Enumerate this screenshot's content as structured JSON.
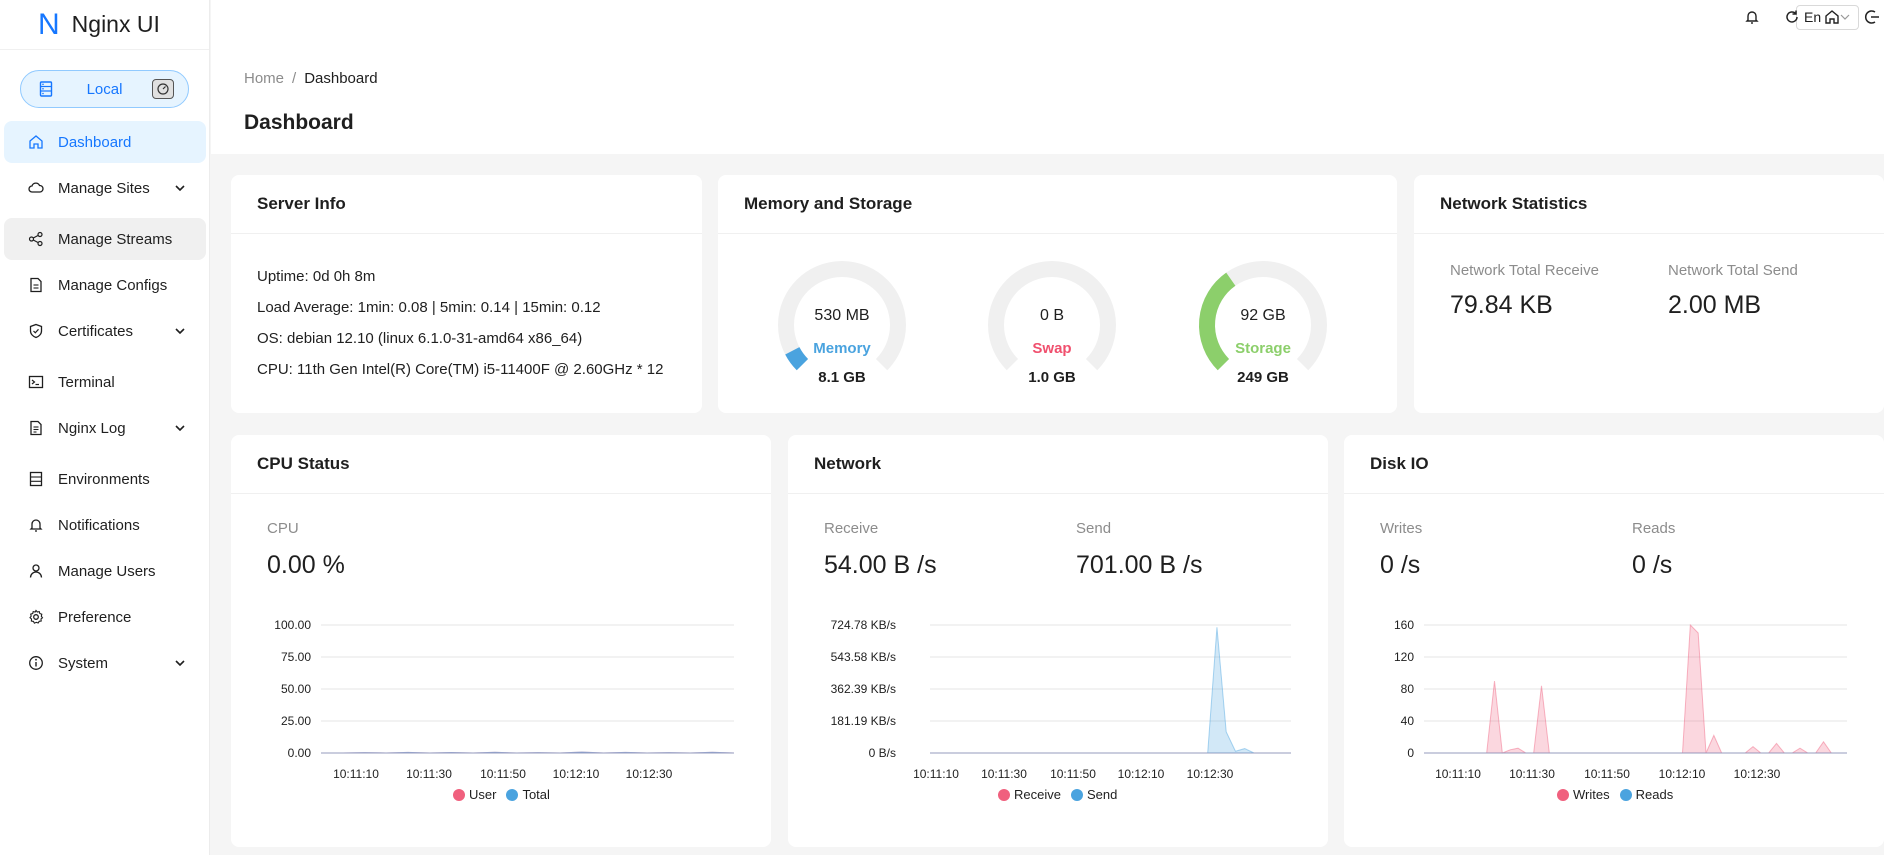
{
  "app": {
    "logo_mark": "N",
    "title": "Nginx UI"
  },
  "environment": {
    "label": "Local"
  },
  "sidebar": {
    "items": [
      {
        "label": "Dashboard",
        "icon": "home-icon",
        "active": true
      },
      {
        "label": "Manage Sites",
        "icon": "cloud-icon",
        "expandable": true
      },
      {
        "label": "Manage Streams",
        "icon": "share-icon"
      },
      {
        "label": "Manage Configs",
        "icon": "file-icon"
      },
      {
        "label": "Certificates",
        "icon": "shield-icon",
        "expandable": true
      },
      {
        "label": "Terminal",
        "icon": "terminal-icon"
      },
      {
        "label": "Nginx Log",
        "icon": "log-file-icon",
        "expandable": true
      },
      {
        "label": "Environments",
        "icon": "database-icon"
      },
      {
        "label": "Notifications",
        "icon": "bell-icon"
      },
      {
        "label": "Manage Users",
        "icon": "user-icon"
      },
      {
        "label": "Preference",
        "icon": "gear-icon"
      },
      {
        "label": "System",
        "icon": "info-icon",
        "expandable": true
      }
    ]
  },
  "header": {
    "language": "En"
  },
  "breadcrumb": {
    "home": "Home",
    "sep": "/",
    "current": "Dashboard"
  },
  "page": {
    "title": "Dashboard"
  },
  "server_info": {
    "title": "Server Info",
    "uptime": "Uptime: 0d 0h 8m",
    "load": "Load Average: 1min: 0.08 | 5min: 0.14 | 15min: 0.12",
    "os": "OS: debian 12.10 (linux 6.1.0-31-amd64 x86_64)",
    "cpu": "CPU: 11th Gen Intel(R) Core(TM) i5-11400F @ 2.60GHz * 12"
  },
  "memory_storage": {
    "title": "Memory and Storage",
    "gauges": [
      {
        "value": "530 MB",
        "name": "Memory",
        "total": "8.1 GB",
        "fraction": 0.065,
        "color": "#4aa3df"
      },
      {
        "value": "0 B",
        "name": "Swap",
        "total": "1.0 GB",
        "fraction": 0.0,
        "color": "#f0506e"
      },
      {
        "value": "92 GB",
        "name": "Storage",
        "total": "249 GB",
        "fraction": 0.37,
        "color": "#8ccf6b"
      }
    ]
  },
  "network_stats": {
    "title": "Network Statistics",
    "receive_label": "Network Total Receive",
    "receive_value": "79.84 KB",
    "send_label": "Network Total Send",
    "send_value": "2.00 MB"
  },
  "cpu_status": {
    "title": "CPU Status",
    "label": "CPU",
    "value": "0.00 %"
  },
  "network": {
    "title": "Network",
    "receive_label": "Receive",
    "receive_value": "54.00 B /s",
    "send_label": "Send",
    "send_value": "701.00 B /s"
  },
  "disk_io": {
    "title": "Disk IO",
    "writes_label": "Writes",
    "writes_value": "0 /s",
    "reads_label": "Reads",
    "reads_value": "0 /s"
  },
  "chart_data": [
    {
      "type": "area",
      "name": "cpu",
      "x_ticks": [
        "10:11:10",
        "10:11:30",
        "10:11:50",
        "10:12:10",
        "10:12:30"
      ],
      "y_ticks": [
        "100.00",
        "75.00",
        "50.00",
        "25.00",
        "0.00"
      ],
      "ylim": [
        0,
        100
      ],
      "series": [
        {
          "name": "User",
          "color": "#f0607e",
          "values": [
            0,
            0,
            0.3,
            0,
            0.5,
            0,
            0.4,
            0,
            0.6,
            0,
            0.3,
            0,
            0.8,
            0,
            0.5,
            0,
            0.3,
            0,
            0.6,
            0
          ]
        },
        {
          "name": "Total",
          "color": "#4aa3df",
          "values": [
            0,
            0,
            0.3,
            0,
            0.5,
            0,
            0.4,
            0,
            0.6,
            0,
            0.3,
            0,
            0.8,
            0,
            0.5,
            0,
            0.3,
            0,
            0.6,
            0
          ]
        }
      ]
    },
    {
      "type": "area",
      "name": "network",
      "x_ticks": [
        "10:11:10",
        "10:11:30",
        "10:11:50",
        "10:12:10",
        "10:12:30"
      ],
      "y_ticks": [
        "724.78 KB/s",
        "543.58 KB/s",
        "362.39 KB/s",
        "181.19 KB/s",
        "0 B/s"
      ],
      "ylim": [
        0,
        724.78
      ],
      "series": [
        {
          "name": "Receive",
          "color": "#f0607e",
          "values": [
            0,
            0,
            0,
            0,
            0,
            0,
            0,
            0,
            0,
            0,
            0,
            0,
            0,
            0,
            0,
            0,
            0,
            0,
            0,
            0,
            0,
            0,
            0,
            0,
            0,
            0,
            0,
            0,
            0,
            0,
            0,
            0,
            0,
            0,
            0,
            0,
            0,
            0,
            0,
            0
          ]
        },
        {
          "name": "Send",
          "color": "#4aa3df",
          "values": [
            0,
            0,
            0,
            0,
            0,
            0,
            0,
            0,
            0,
            0,
            0,
            0,
            0,
            0,
            0,
            0,
            0,
            0,
            0,
            0,
            0,
            0,
            0,
            0,
            0,
            0,
            0,
            0,
            0,
            0,
            0,
            712,
            120,
            10,
            25,
            0,
            0,
            0,
            0,
            0
          ]
        }
      ]
    },
    {
      "type": "area",
      "name": "disk",
      "x_ticks": [
        "10:11:10",
        "10:11:30",
        "10:11:50",
        "10:12:10",
        "10:12:30"
      ],
      "y_ticks": [
        "160",
        "120",
        "80",
        "40",
        "0"
      ],
      "ylim": [
        0,
        160
      ],
      "series": [
        {
          "name": "Writes",
          "color": "#f0607e",
          "values": [
            0,
            0,
            0,
            0,
            0,
            0,
            0,
            0,
            0,
            90,
            0,
            4,
            6,
            0,
            0,
            84,
            0,
            0,
            0,
            0,
            0,
            0,
            0,
            0,
            0,
            0,
            0,
            0,
            0,
            0,
            0,
            0,
            0,
            0,
            160,
            150,
            0,
            22,
            0,
            0,
            0,
            0,
            8,
            0,
            0,
            12,
            0,
            0,
            6,
            0,
            0,
            14,
            0,
            0,
            0
          ]
        },
        {
          "name": "Reads",
          "color": "#4aa3df",
          "values": [
            0,
            0,
            0,
            0,
            0,
            0,
            0,
            0,
            0,
            0,
            0,
            0,
            0,
            0,
            0,
            0,
            0,
            0,
            0,
            0,
            0,
            0,
            0,
            0,
            0,
            0,
            0,
            0,
            0,
            0,
            0,
            0,
            0,
            0,
            0,
            0,
            0,
            0,
            0,
            0,
            0,
            0,
            0,
            0,
            0,
            0,
            0,
            0,
            0,
            0,
            0,
            0,
            0,
            0,
            0
          ]
        }
      ]
    }
  ]
}
